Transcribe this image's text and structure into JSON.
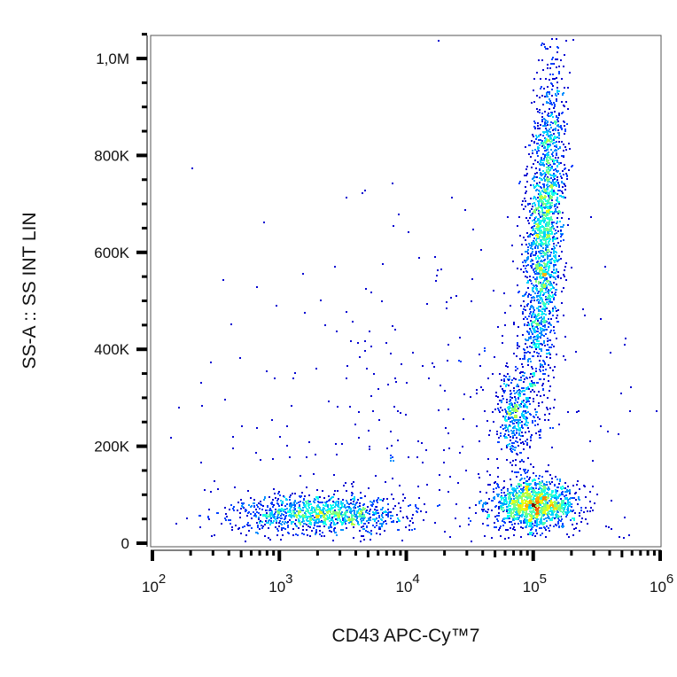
{
  "chart_data": {
    "type": "scatter",
    "subtype": "density-dot-plot",
    "xlabel": "CD43 APC-Cy™7",
    "ylabel": "SS-A :: SS INT LIN",
    "x_scale": "log",
    "xlim": [
      100,
      1000000
    ],
    "ylim": [
      0,
      1050000
    ],
    "x_ticks": [
      {
        "value": 100,
        "base": "10",
        "exp": "2"
      },
      {
        "value": 1000,
        "base": "10",
        "exp": "3"
      },
      {
        "value": 10000,
        "base": "10",
        "exp": "4"
      },
      {
        "value": 100000,
        "base": "10",
        "exp": "5"
      },
      {
        "value": 1000000,
        "base": "10",
        "exp": "6"
      }
    ],
    "y_ticks": [
      {
        "value": 0,
        "label": "0"
      },
      {
        "value": 200000,
        "label": "200K"
      },
      {
        "value": 400000,
        "label": "400K"
      },
      {
        "value": 600000,
        "label": "600K"
      },
      {
        "value": 800000,
        "label": "800K"
      },
      {
        "value": 1000000,
        "label": "1,0M"
      }
    ],
    "grid": false,
    "color_map": "jet (density: blue low, red high)",
    "populations": [
      {
        "center_x": 2000,
        "center_y": 62000,
        "sd_log10_x": 0.33,
        "sd_y": 20000,
        "n": 1100
      },
      {
        "center_x": 100000,
        "center_y": 80000,
        "sd_log10_x": 0.17,
        "sd_y": 25000,
        "n": 1300
      },
      {
        "center_x": 120000,
        "center_y": 640000,
        "sd_log10_x": 0.07,
        "sd_y": 170000,
        "n": 2000
      },
      {
        "center_x": 70000,
        "center_y": 270000,
        "sd_log10_x": 0.07,
        "sd_y": 45000,
        "n": 380
      },
      {
        "center_x": 15000,
        "center_y": 250000,
        "sd_log10_x": 0.9,
        "sd_y": 220000,
        "n": 350
      }
    ]
  }
}
